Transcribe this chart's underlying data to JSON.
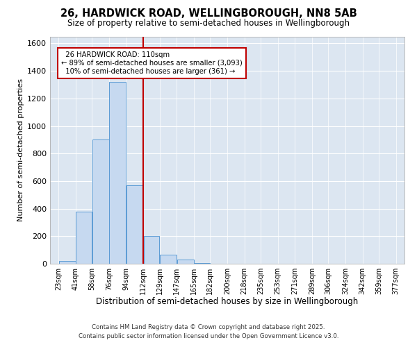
{
  "title": "26, HARDWICK ROAD, WELLINGBOROUGH, NN8 5AB",
  "subtitle": "Size of property relative to semi-detached houses in Wellingborough",
  "xlabel": "Distribution of semi-detached houses by size in Wellingborough",
  "ylabel": "Number of semi-detached properties",
  "property_label": "26 HARDWICK ROAD: 110sqm",
  "pct_smaller": 89,
  "count_smaller": 3093,
  "pct_larger": 10,
  "count_larger": 361,
  "bar_left_edges": [
    23,
    41,
    58,
    76,
    94,
    112,
    129,
    147,
    165,
    182,
    200,
    218,
    235,
    253,
    271,
    289,
    306,
    324,
    342,
    359
  ],
  "bar_widths": [
    18,
    17,
    18,
    18,
    18,
    17,
    18,
    18,
    17,
    18,
    18,
    17,
    18,
    18,
    18,
    17,
    18,
    18,
    17,
    18
  ],
  "bar_heights": [
    20,
    380,
    900,
    1320,
    570,
    200,
    65,
    30,
    5,
    0,
    0,
    0,
    0,
    0,
    0,
    0,
    0,
    0,
    0,
    0
  ],
  "tick_labels": [
    "23sqm",
    "41sqm",
    "58sqm",
    "76sqm",
    "94sqm",
    "112sqm",
    "129sqm",
    "147sqm",
    "165sqm",
    "182sqm",
    "200sqm",
    "218sqm",
    "235sqm",
    "253sqm",
    "271sqm",
    "289sqm",
    "306sqm",
    "324sqm",
    "342sqm",
    "359sqm",
    "377sqm"
  ],
  "tick_positions": [
    23,
    41,
    58,
    76,
    94,
    112,
    129,
    147,
    165,
    182,
    200,
    218,
    235,
    253,
    271,
    289,
    306,
    324,
    342,
    359,
    377
  ],
  "bar_color": "#c6d9f0",
  "bar_edge_color": "#5b9bd5",
  "vline_color": "#c00000",
  "vline_x": 112,
  "annotation_box_color": "#ffffff",
  "annotation_box_edge": "#c00000",
  "ylim": [
    0,
    1650
  ],
  "yticks": [
    0,
    200,
    400,
    600,
    800,
    1000,
    1200,
    1400,
    1600
  ],
  "plot_bg_color": "#dce6f1",
  "figure_bg_color": "#ffffff",
  "grid_color": "#ffffff",
  "footer_line1": "Contains HM Land Registry data © Crown copyright and database right 2025.",
  "footer_line2": "Contains public sector information licensed under the Open Government Licence v3.0."
}
